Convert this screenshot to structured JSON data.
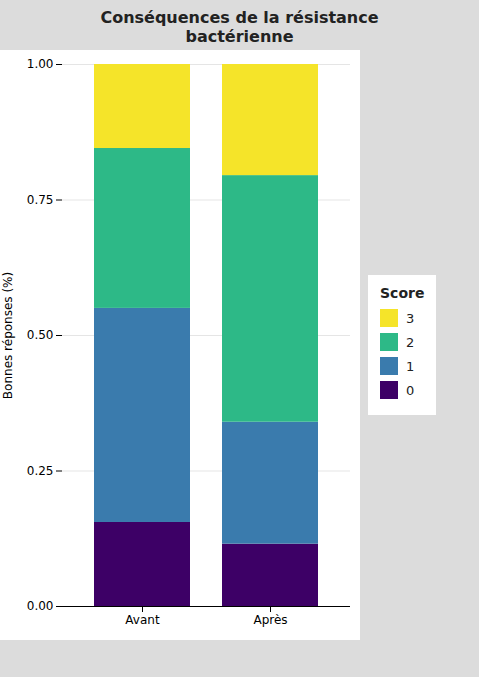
{
  "chart_data": {
    "type": "bar",
    "stacked": true,
    "title": "Conséquences de la résistance\nbactérienne",
    "ylabel": "Bonnes réponses (%)",
    "categories": [
      "Avant",
      "Après"
    ],
    "series": [
      {
        "name": "0",
        "color": "#3D0066",
        "values": [
          0.155,
          0.115
        ]
      },
      {
        "name": "1",
        "color": "#3A7BAD",
        "values": [
          0.395,
          0.225
        ]
      },
      {
        "name": "2",
        "color": "#2DB987",
        "values": [
          0.295,
          0.455
        ]
      },
      {
        "name": "3",
        "color": "#F5E429",
        "values": [
          0.155,
          0.205
        ]
      }
    ],
    "ylim": [
      0.0,
      1.0
    ],
    "yticks": [
      {
        "value": 0.0,
        "label": "0.00"
      },
      {
        "value": 0.25,
        "label": "0.25"
      },
      {
        "value": 0.5,
        "label": "0.50"
      },
      {
        "value": 0.75,
        "label": "0.75"
      },
      {
        "value": 1.0,
        "label": "1.00"
      }
    ],
    "grid": true,
    "legend": "right",
    "legend_title": "Score"
  }
}
